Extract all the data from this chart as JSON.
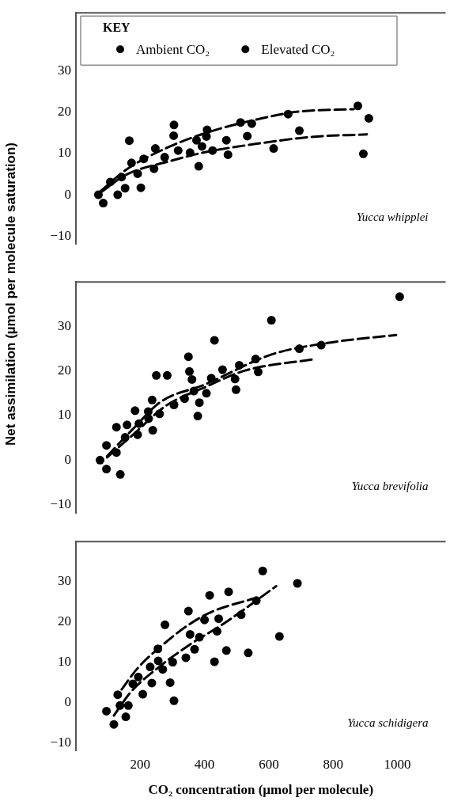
{
  "chart_data": [
    {
      "type": "scatter",
      "legend_title": "KEY",
      "legend": "top left",
      "marker": "circle",
      "tick_labels": "y",
      "xlim": [
        0,
        1150
      ],
      "xticks": [
        200,
        400,
        600,
        800,
        1000
      ],
      "ylim": [
        -12,
        44
      ],
      "yticks": [
        -10,
        0,
        10,
        20,
        30
      ],
      "annotations": [
        "Yucca whipplei"
      ],
      "series": [
        {
          "name": "Ambient CO₂",
          "color": "#000000",
          "x": [
            70,
            85,
            130,
            142,
            153,
            192,
            202,
            243,
            276,
            318,
            355,
            382,
            392,
            425,
            468,
            473,
            533,
            615,
            695,
            894
          ],
          "values": [
            0,
            -2,
            0,
            4.3,
            1.6,
            5.1,
            1.7,
            6.3,
            9.1,
            10.7,
            10.2,
            6.9,
            11.7,
            10.7,
            13.2,
            9.7,
            14.2,
            11.2,
            15.5,
            9.9
          ]
        },
        {
          "name": "Elevated CO₂",
          "color": "#000000",
          "x": [
            107,
            166,
            173,
            211,
            247,
            304,
            305,
            375,
            406,
            408,
            512,
            547,
            660,
            877,
            911
          ],
          "values": [
            3.1,
            13.1,
            7.7,
            8.7,
            11.2,
            14.3,
            16.9,
            13.2,
            14.1,
            15.7,
            17.5,
            17.2,
            19.5,
            21.5,
            18.5
          ]
        },
        {
          "type": "line",
          "marker": "none",
          "line_style": "dashed",
          "color": "#000000",
          "x": [
            76,
            155,
            295,
            402,
            577,
            732,
            905
          ],
          "values": [
            0.5,
            4.8,
            8.2,
            10.3,
            12.5,
            14.0,
            14.6
          ]
        },
        {
          "type": "line",
          "marker": "none",
          "line_style": "dashed",
          "color": "#000000",
          "x": [
            76,
            155,
            270,
            402,
            567,
            691,
            864
          ],
          "values": [
            0.8,
            6.0,
            10.9,
            14.9,
            18.3,
            20.1,
            20.7
          ]
        }
      ]
    },
    {
      "type": "scatter",
      "ylabel": "Net assimilation (µmol per molecule saturation)",
      "marker": "circle",
      "tick_labels": "y",
      "xlim": [
        0,
        1150
      ],
      "xticks": [
        200,
        400,
        600,
        800,
        1000
      ],
      "ylim": [
        -12,
        40
      ],
      "yticks": [
        -10,
        0,
        10,
        20,
        30
      ],
      "annotations": [
        "Yucca brevifolia"
      ],
      "series": [
        {
          "color": "#000000",
          "x": [
            75,
            95,
            126,
            138,
            153,
            192,
            196,
            226,
            239,
            260,
            305,
            338,
            367,
            379,
            384,
            406,
            421,
            495,
            498,
            567
          ],
          "values": [
            0,
            -2,
            1.7,
            -3.2,
            5.1,
            5.7,
            8.2,
            9.3,
            6.7,
            10.4,
            12.4,
            13.8,
            15.5,
            9.9,
            12.9,
            15.0,
            18.4,
            18.2,
            15.8,
            19.8
          ]
        },
        {
          "color": "#000000",
          "x": [
            95,
            126,
            159,
            184,
            225,
            237,
            250,
            284,
            350,
            353,
            361,
            431,
            456,
            508,
            559,
            608,
            695,
            763,
            1007
          ],
          "values": [
            3.3,
            7.4,
            7.9,
            11.1,
            10.9,
            13.5,
            19.0,
            19.0,
            23.2,
            19.9,
            18.1,
            26.9,
            20.3,
            21.3,
            22.7,
            31.4,
            25.0,
            25.8,
            36.7
          ]
        },
        {
          "type": "line",
          "marker": "none",
          "line_style": "dashed",
          "color": "#000000",
          "x": [
            97,
            179,
            278,
            402,
            526,
            745
          ],
          "values": [
            0.6,
            5.8,
            12.1,
            16.4,
            20.1,
            22.7
          ]
        },
        {
          "type": "line",
          "marker": "none",
          "line_style": "dashed",
          "color": "#000000",
          "x": [
            97,
            179,
            262,
            402,
            608,
            782,
            996
          ],
          "values": [
            0.9,
            7.1,
            13.0,
            17.0,
            23.7,
            26.3,
            28.1
          ]
        }
      ]
    },
    {
      "type": "scatter",
      "xlabel": "CO₂ concentration (µmol per molecule)",
      "marker": "circle",
      "xlim": [
        0,
        1150
      ],
      "xticks": [
        200,
        400,
        600,
        800,
        1000
      ],
      "ylim": [
        -12,
        40
      ],
      "yticks": [
        -10,
        0,
        10,
        20,
        30
      ],
      "annotations": [
        "Yucca schidigera"
      ],
      "series": [
        {
          "color": "#000000",
          "x": [
            95,
            118,
            137,
            155,
            163,
            208,
            236,
            270,
            293,
            301,
            305,
            342,
            369,
            384,
            431,
            439,
            468,
            514,
            536,
            633
          ],
          "values": [
            -2.2,
            -5.5,
            -0.8,
            -3.6,
            -0.8,
            2.0,
            4.8,
            8.2,
            4.9,
            10.0,
            0.4,
            11.1,
            13.2,
            16.2,
            10.1,
            17.7,
            12.9,
            21.8,
            12.3,
            16.4
          ]
        },
        {
          "color": "#000000",
          "x": [
            130,
            177,
            194,
            231,
            255,
            256,
            277,
            350,
            355,
            400,
            416,
            444,
            475,
            561,
            581,
            689
          ],
          "values": [
            1.9,
            4.6,
            6.3,
            8.8,
            13.3,
            10.3,
            19.3,
            22.7,
            16.9,
            20.5,
            26.6,
            20.8,
            27.5,
            25.3,
            32.7,
            29.6
          ]
        },
        {
          "type": "line",
          "marker": "none",
          "line_style": "dashed",
          "color": "#000000",
          "x": [
            118,
            171,
            254,
            353,
            460,
            623
          ],
          "values": [
            -3.3,
            2.6,
            8.5,
            14.3,
            19.6,
            28.9
          ]
        },
        {
          "type": "line",
          "marker": "none",
          "line_style": "dashed",
          "color": "#000000",
          "x": [
            142,
            192,
            270,
            345,
            419,
            551
          ],
          "values": [
            3.2,
            8.5,
            14.3,
            19.0,
            22.4,
            25.8
          ]
        }
      ]
    }
  ]
}
